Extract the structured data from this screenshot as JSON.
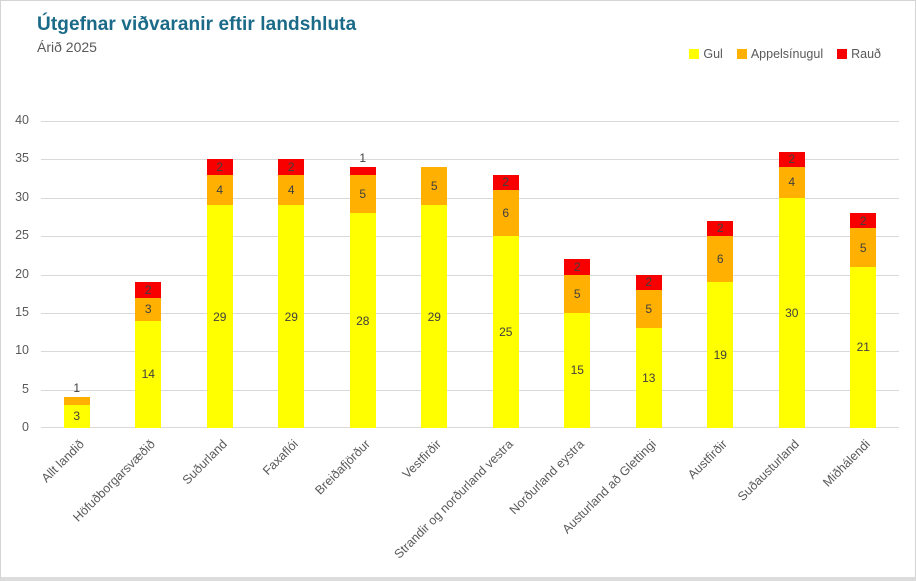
{
  "header": {
    "title": "Útgefnar viðvaranir eftir landshluta",
    "subtitle": "Árið 2025"
  },
  "legend": {
    "items": [
      {
        "label": "Gul",
        "color": "#FFFF00"
      },
      {
        "label": "Appelsínugul",
        "color": "#FFB000"
      },
      {
        "label": "Rauð",
        "color": "#F80000"
      }
    ]
  },
  "colors": {
    "title": "#1A6A88",
    "subtitle": "#595959",
    "axis": "#595959",
    "grid": "#D9D9D9",
    "label": "#3F3F3F",
    "yellow": "#FFFF00",
    "orange": "#FFB000",
    "red": "#F80000"
  },
  "chart_data": {
    "type": "bar",
    "stacked": true,
    "title": "Útgefnar viðvaranir eftir landshluta",
    "subtitle": "Árið 2025",
    "categories": [
      "Allt landið",
      "Höfuðborgarsvæðið",
      "Suðurland",
      "Faxaflói",
      "Breiðafjörður",
      "Vestfirðir",
      "Strandir og norðurland vestra",
      "Norðurland eystra",
      "Austurland að Glettingi",
      "Austfirðir",
      "Suðausturland",
      "Miðhálendi"
    ],
    "series": [
      {
        "name": "Gul",
        "color": "#FFFF00",
        "values": [
          3,
          14,
          29,
          29,
          28,
          29,
          25,
          15,
          13,
          19,
          30,
          21
        ]
      },
      {
        "name": "Appelsínugul",
        "color": "#FFB000",
        "values": [
          1,
          3,
          4,
          4,
          5,
          5,
          6,
          5,
          5,
          6,
          4,
          5
        ]
      },
      {
        "name": "Rauð",
        "color": "#F80000",
        "values": [
          0,
          2,
          2,
          2,
          1,
          0,
          2,
          2,
          2,
          2,
          2,
          2
        ]
      }
    ],
    "ylim": [
      0,
      40
    ],
    "yticks": [
      0,
      5,
      10,
      15,
      20,
      25,
      30,
      35,
      40
    ],
    "grid": true,
    "legend_position": "top-right",
    "x_label_rotation_deg": 45,
    "data_labels": "shown inside segments; values of 1 shown above bar"
  }
}
